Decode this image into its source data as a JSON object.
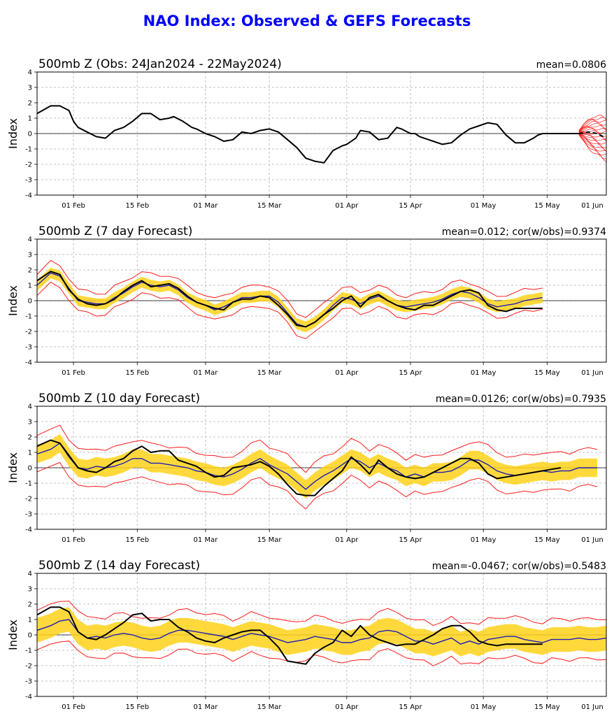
{
  "page": {
    "title": "NAO Index: Observed & GEFS Forecasts"
  },
  "chart_data": [
    {
      "type": "line",
      "title": "500mb Z (Obs: 24Jan2024 - 22May2024)",
      "stat": "mean=0.0806",
      "ylabel": "Index",
      "ylim": [
        -4,
        4
      ],
      "yticks": [
        4,
        3,
        2,
        1,
        0,
        -1,
        -2,
        -3,
        -4
      ],
      "xlim": [
        0,
        125
      ],
      "xticks": [
        {
          "x": 8,
          "label": "01 Feb"
        },
        {
          "x": 22,
          "label": "15 Feb"
        },
        {
          "x": 37,
          "label": "01 Mar"
        },
        {
          "x": 51,
          "label": "15 Mar"
        },
        {
          "x": 68,
          "label": "01 Apr"
        },
        {
          "x": 82,
          "label": "15 Apr"
        },
        {
          "x": 98,
          "label": "01 May"
        },
        {
          "x": 112,
          "label": "15 May"
        },
        {
          "x": 129,
          "label": "01 Jun"
        }
      ],
      "grid": true,
      "observed": {
        "x": [
          0,
          3,
          5,
          7,
          8,
          9,
          11,
          13,
          15,
          17,
          19,
          21,
          23,
          25,
          27,
          29,
          30,
          32,
          34,
          35,
          37,
          39,
          41,
          43,
          45,
          47,
          49,
          51,
          53,
          55,
          57,
          59,
          61,
          63,
          65,
          67,
          68,
          70,
          71,
          73,
          75,
          77,
          79,
          80,
          82,
          83,
          84,
          86,
          87,
          89,
          91,
          93,
          95,
          97,
          99,
          101,
          103,
          105,
          107,
          109,
          110,
          111,
          113,
          115,
          117,
          119
        ],
        "values": [
          1.3,
          1.8,
          1.8,
          1.5,
          0.8,
          0.4,
          0.1,
          -0.2,
          -0.3,
          0.2,
          0.4,
          0.8,
          1.3,
          1.3,
          0.9,
          1.0,
          1.1,
          0.8,
          0.4,
          0.3,
          0.0,
          -0.2,
          -0.5,
          -0.4,
          0.1,
          0.0,
          0.2,
          0.3,
          0.1,
          -0.4,
          -0.9,
          -1.6,
          -1.8,
          -1.9,
          -1.1,
          -0.8,
          -0.7,
          -0.3,
          0.2,
          0.1,
          -0.4,
          -0.3,
          0.4,
          0.3,
          0.0,
          0.0,
          -0.2,
          -0.4,
          -0.5,
          -0.7,
          -0.6,
          -0.1,
          0.3,
          0.5,
          0.7,
          0.6,
          -0.1,
          -0.6,
          -0.6,
          -0.3,
          -0.1,
          0.0,
          0.0,
          0.0,
          0.0,
          0.0
        ]
      },
      "forecast_members": {
        "x": [
          119,
          120,
          121,
          122,
          123,
          124,
          125
        ],
        "lo": [
          -0.1,
          -0.5,
          -0.9,
          -1.2,
          -1.4,
          -1.6,
          -1.7
        ],
        "hi": [
          0.2,
          0.6,
          0.9,
          1.1,
          1.1,
          1.1,
          1.0
        ]
      },
      "forecast_mean": {
        "x": [
          119,
          121,
          123,
          125
        ],
        "values": [
          0.0,
          0.1,
          0.0,
          -0.3
        ]
      }
    },
    {
      "type": "line",
      "title": "500mb Z (7 day Forecast)",
      "stat": "mean=0.012; cor(w/obs)=0.9374",
      "ylabel": "Index",
      "ylim": [
        -4,
        4
      ],
      "yticks": [
        4,
        3,
        2,
        1,
        0,
        -1,
        -2,
        -3,
        -4
      ],
      "xlim": [
        0,
        125
      ],
      "xticks": [
        {
          "x": 8,
          "label": "01 Feb"
        },
        {
          "x": 22,
          "label": "15 Feb"
        },
        {
          "x": 37,
          "label": "01 Mar"
        },
        {
          "x": 51,
          "label": "15 Mar"
        },
        {
          "x": 68,
          "label": "01 Apr"
        },
        {
          "x": 82,
          "label": "15 Apr"
        },
        {
          "x": 98,
          "label": "01 May"
        },
        {
          "x": 112,
          "label": "15 May"
        },
        {
          "x": 129,
          "label": "01 Jun"
        }
      ],
      "grid": true,
      "observed": {
        "x": [
          0,
          3,
          5,
          7,
          9,
          11,
          13,
          15,
          17,
          19,
          21,
          23,
          25,
          27,
          29,
          31,
          33,
          35,
          37,
          39,
          41,
          43,
          45,
          47,
          49,
          51,
          53,
          55,
          57,
          59,
          61,
          63,
          65,
          67,
          69,
          71,
          73,
          75,
          77,
          79,
          81,
          83,
          85,
          87,
          89,
          91,
          93,
          95,
          97,
          99,
          101,
          103,
          105,
          107,
          109,
          111
        ],
        "values": [
          1.3,
          1.9,
          1.7,
          0.7,
          0.1,
          -0.2,
          -0.3,
          -0.2,
          0.1,
          0.6,
          1.0,
          1.3,
          0.9,
          1.0,
          1.1,
          0.8,
          0.3,
          -0.1,
          -0.3,
          -0.5,
          -0.6,
          -0.1,
          0.1,
          0.1,
          0.3,
          0.2,
          -0.3,
          -0.9,
          -1.6,
          -1.7,
          -1.4,
          -0.9,
          -0.5,
          0.0,
          0.3,
          -0.4,
          0.2,
          0.4,
          0.0,
          -0.3,
          -0.5,
          -0.6,
          -0.3,
          -0.3,
          0.0,
          0.3,
          0.6,
          0.7,
          0.5,
          -0.3,
          -0.6,
          -0.7,
          -0.5,
          -0.5,
          -0.5,
          -0.5
        ]
      },
      "mean": {
        "x": [
          0,
          3,
          5,
          7,
          9,
          11,
          13,
          15,
          17,
          19,
          21,
          23,
          25,
          27,
          29,
          31,
          33,
          35,
          37,
          39,
          41,
          43,
          45,
          47,
          49,
          51,
          53,
          55,
          57,
          59,
          61,
          63,
          65,
          67,
          69,
          71,
          73,
          75,
          77,
          79,
          81,
          83,
          85,
          87,
          89,
          91,
          93,
          95,
          97,
          99,
          101,
          103,
          105,
          107,
          109,
          111
        ],
        "values": [
          1.0,
          1.8,
          1.6,
          0.8,
          0.0,
          -0.1,
          -0.2,
          -0.2,
          0.2,
          0.5,
          0.9,
          1.2,
          1.0,
          0.9,
          1.0,
          0.7,
          0.2,
          -0.1,
          -0.3,
          -0.6,
          -0.4,
          -0.1,
          0.2,
          0.2,
          0.3,
          0.3,
          -0.1,
          -0.8,
          -1.5,
          -1.7,
          -1.4,
          -0.9,
          -0.3,
          0.2,
          0.1,
          -0.2,
          0.1,
          0.3,
          0.0,
          -0.3,
          -0.4,
          -0.3,
          -0.2,
          -0.1,
          0.1,
          0.4,
          0.6,
          0.5,
          0.2,
          -0.2,
          -0.4,
          -0.3,
          -0.2,
          0.0,
          0.1,
          0.2
        ]
      },
      "band_half_width": 0.35,
      "envelope_offset": 0.7
    },
    {
      "type": "line",
      "title": "500mb Z (10 day Forecast)",
      "stat": "mean=0.0126; cor(w/obs)=0.7935",
      "ylabel": "Index",
      "ylim": [
        -4,
        4
      ],
      "yticks": [
        4,
        3,
        2,
        1,
        0,
        -1,
        -2,
        -3,
        -4
      ],
      "xlim": [
        0,
        125
      ],
      "xticks": [
        {
          "x": 8,
          "label": "01 Feb"
        },
        {
          "x": 22,
          "label": "15 Feb"
        },
        {
          "x": 37,
          "label": "01 Mar"
        },
        {
          "x": 51,
          "label": "15 Mar"
        },
        {
          "x": 68,
          "label": "01 Apr"
        },
        {
          "x": 82,
          "label": "15 Apr"
        },
        {
          "x": 98,
          "label": "01 May"
        },
        {
          "x": 112,
          "label": "15 May"
        },
        {
          "x": 129,
          "label": "01 Jun"
        }
      ],
      "grid": true,
      "observed": {
        "x": [
          0,
          3,
          5,
          7,
          9,
          11,
          13,
          15,
          17,
          19,
          21,
          23,
          25,
          27,
          29,
          31,
          33,
          35,
          37,
          39,
          41,
          43,
          45,
          47,
          49,
          51,
          53,
          55,
          57,
          59,
          61,
          63,
          65,
          67,
          69,
          71,
          73,
          75,
          77,
          79,
          81,
          83,
          85,
          87,
          89,
          91,
          93,
          95,
          97,
          99,
          101,
          103,
          105,
          107,
          109,
          111,
          113,
          115
        ],
        "values": [
          1.4,
          1.8,
          1.6,
          0.8,
          0.0,
          -0.2,
          -0.3,
          0.0,
          0.4,
          0.6,
          1.1,
          1.4,
          1.0,
          1.1,
          1.1,
          0.5,
          0.3,
          0.1,
          -0.3,
          -0.6,
          -0.5,
          0.0,
          0.1,
          0.2,
          0.4,
          0.1,
          -0.4,
          -1.1,
          -1.7,
          -1.8,
          -1.8,
          -1.2,
          -0.7,
          -0.2,
          0.7,
          0.2,
          -0.4,
          0.5,
          0.0,
          -0.4,
          -0.6,
          -0.7,
          -0.6,
          -0.3,
          0.0,
          0.3,
          0.6,
          0.6,
          0.3,
          -0.4,
          -0.7,
          -0.6,
          -0.5,
          -0.4,
          -0.3,
          -0.2,
          -0.1,
          0.0
        ]
      },
      "mean": {
        "x": [
          0,
          3,
          5,
          7,
          9,
          11,
          13,
          15,
          17,
          19,
          21,
          23,
          25,
          27,
          29,
          31,
          33,
          35,
          37,
          39,
          41,
          43,
          45,
          47,
          49,
          51,
          53,
          55,
          57,
          59,
          61,
          63,
          65,
          67,
          69,
          71,
          73,
          75,
          77,
          79,
          81,
          83,
          85,
          87,
          89,
          91,
          93,
          95,
          97,
          99,
          101,
          103,
          105,
          107,
          109,
          111,
          113,
          115,
          117,
          119,
          121,
          123
        ],
        "values": [
          0.9,
          1.2,
          1.6,
          0.7,
          0.0,
          -0.1,
          0.1,
          0.0,
          0.1,
          0.3,
          0.6,
          0.6,
          0.3,
          0.3,
          0.2,
          0.1,
          0.0,
          -0.2,
          -0.3,
          -0.5,
          -0.6,
          -0.4,
          -0.1,
          0.3,
          0.6,
          0.2,
          -0.1,
          -0.4,
          -0.9,
          -1.4,
          -0.9,
          -0.5,
          -0.2,
          0.2,
          0.6,
          0.4,
          0.0,
          0.3,
          0.0,
          -0.2,
          -0.6,
          -0.4,
          -0.6,
          -0.3,
          -0.3,
          -0.2,
          0.1,
          0.5,
          0.5,
          0.2,
          -0.2,
          -0.4,
          -0.5,
          -0.4,
          -0.3,
          -0.2,
          -0.3,
          -0.2,
          -0.2,
          0.0,
          0.0,
          0.0
        ]
      },
      "band_half_width": 0.6,
      "envelope_offset": 1.2
    },
    {
      "type": "line",
      "title": "500mb Z (14 day Forecast)",
      "stat": "mean=-0.0467; cor(w/obs)=0.5483",
      "ylabel": "Index",
      "ylim": [
        -4,
        4
      ],
      "yticks": [
        4,
        3,
        2,
        1,
        0,
        -1,
        -2,
        -3,
        -4
      ],
      "xlim": [
        0,
        125
      ],
      "xticks": [
        {
          "x": 8,
          "label": "01 Feb"
        },
        {
          "x": 22,
          "label": "15 Feb"
        },
        {
          "x": 37,
          "label": "01 Mar"
        },
        {
          "x": 51,
          "label": "15 Mar"
        },
        {
          "x": 68,
          "label": "01 Apr"
        },
        {
          "x": 82,
          "label": "15 Apr"
        },
        {
          "x": 98,
          "label": "01 May"
        },
        {
          "x": 112,
          "label": "15 May"
        },
        {
          "x": 129,
          "label": "01 Jun"
        }
      ],
      "grid": true,
      "observed": {
        "x": [
          0,
          3,
          5,
          7,
          9,
          11,
          13,
          15,
          17,
          19,
          21,
          23,
          25,
          27,
          29,
          31,
          33,
          35,
          37,
          39,
          41,
          43,
          45,
          47,
          49,
          51,
          53,
          55,
          57,
          59,
          61,
          63,
          65,
          67,
          69,
          71,
          73,
          75,
          77,
          79,
          81,
          83,
          85,
          87,
          89,
          91,
          93,
          95,
          97,
          99,
          101,
          103,
          105,
          107,
          109,
          111
        ],
        "values": [
          1.3,
          1.8,
          1.8,
          1.5,
          0.2,
          -0.2,
          -0.3,
          0.0,
          0.4,
          0.8,
          1.3,
          1.4,
          0.9,
          1.0,
          1.0,
          0.5,
          0.2,
          -0.2,
          -0.4,
          -0.5,
          -0.2,
          0.0,
          0.2,
          0.3,
          0.3,
          -0.2,
          -0.8,
          -1.7,
          -1.8,
          -1.9,
          -1.2,
          -0.8,
          -0.5,
          0.3,
          -0.1,
          0.6,
          0.0,
          -0.3,
          -0.5,
          -0.7,
          -0.6,
          -0.6,
          -0.3,
          0.0,
          0.4,
          0.6,
          0.6,
          0.2,
          -0.4,
          -0.6,
          -0.7,
          -0.6,
          -0.6,
          -0.6,
          -0.6,
          -0.6
        ]
      },
      "mean": {
        "x": [
          0,
          3,
          5,
          7,
          9,
          11,
          13,
          15,
          17,
          19,
          21,
          23,
          25,
          27,
          29,
          31,
          33,
          35,
          37,
          39,
          41,
          43,
          45,
          47,
          49,
          51,
          53,
          55,
          57,
          59,
          61,
          63,
          65,
          67,
          69,
          71,
          73,
          75,
          77,
          79,
          81,
          83,
          85,
          87,
          89,
          91,
          93,
          95,
          97,
          99,
          101,
          103,
          105,
          107,
          109,
          111,
          113,
          115,
          117,
          119,
          121,
          123,
          125
        ],
        "values": [
          0.3,
          0.6,
          0.9,
          1.0,
          0.2,
          -0.2,
          -0.1,
          -0.2,
          0.0,
          0.1,
          0.0,
          -0.2,
          -0.3,
          -0.2,
          0.1,
          0.3,
          0.3,
          0.2,
          0.1,
          0.0,
          -0.1,
          -0.3,
          -0.1,
          0.1,
          0.0,
          -0.1,
          -0.3,
          -0.5,
          -0.4,
          -0.3,
          -0.1,
          -0.2,
          -0.3,
          -0.5,
          -0.5,
          -0.3,
          -0.2,
          0.2,
          0.3,
          0.2,
          -0.1,
          -0.4,
          -0.4,
          -0.6,
          -0.4,
          -0.2,
          -0.6,
          -0.4,
          -0.6,
          -0.3,
          -0.2,
          -0.1,
          -0.1,
          -0.3,
          -0.4,
          -0.5,
          -0.3,
          -0.3,
          -0.3,
          -0.2,
          -0.3,
          -0.3,
          -0.2
        ]
      },
      "band_half_width": 0.8,
      "envelope_offset": 1.3
    }
  ]
}
